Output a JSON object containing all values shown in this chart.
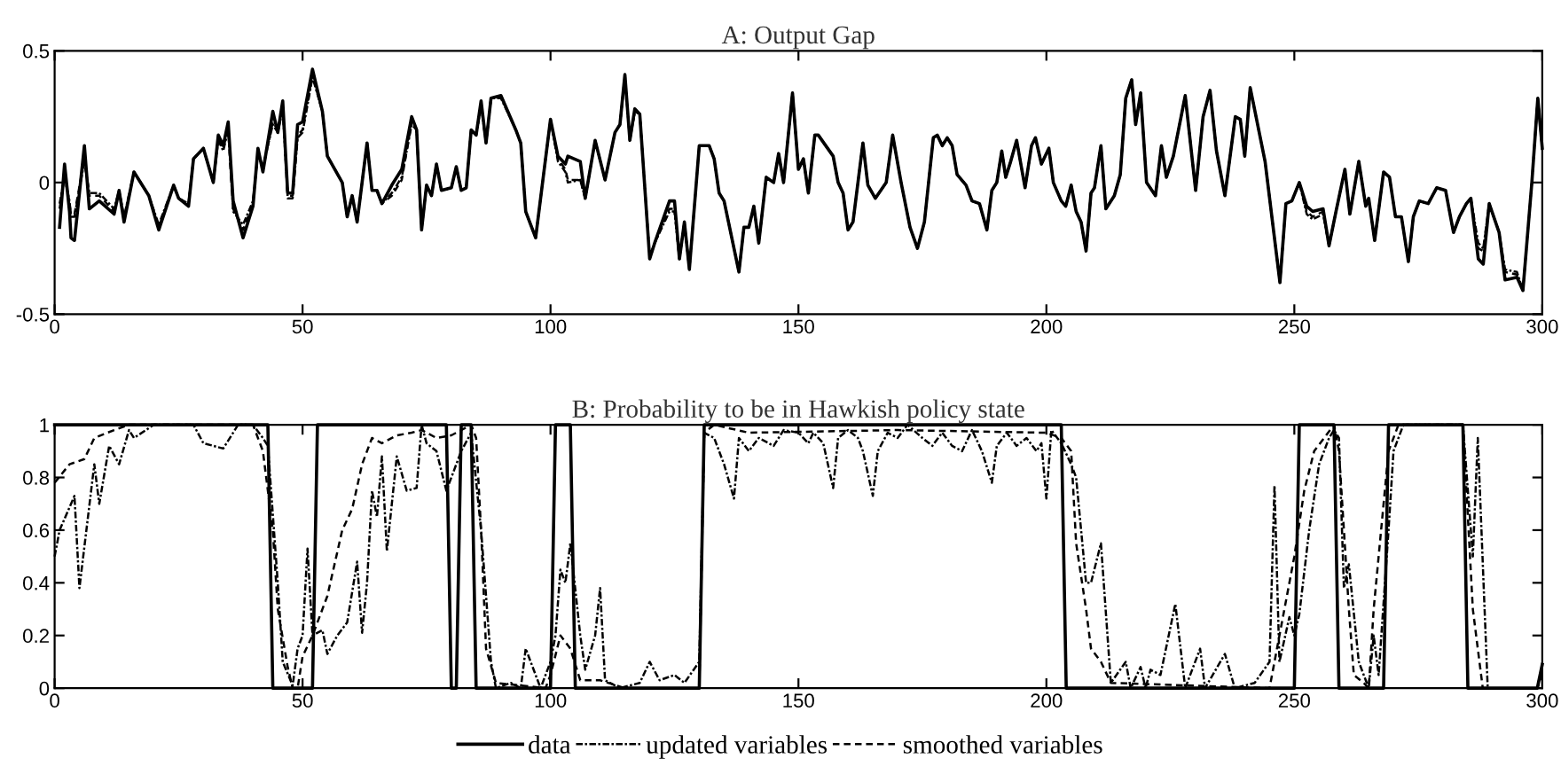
{
  "chart_data": [
    {
      "type": "line",
      "title": "A: Output Gap",
      "xlim": [
        0,
        300
      ],
      "xticks": [
        0,
        50,
        100,
        150,
        200,
        250,
        300
      ],
      "ylim": [
        -0.5,
        0.5
      ],
      "yticks": [
        -0.5,
        0,
        0.5
      ],
      "grid": false,
      "series": [
        {
          "color": "#000000",
          "line_style": "solid",
          "x": [
            1,
            2,
            3,
            3.3,
            4,
            6,
            7,
            9,
            12,
            13,
            14,
            16,
            19,
            21,
            24,
            25,
            27,
            28,
            30,
            32,
            33,
            34,
            35,
            36,
            38,
            40,
            41,
            42,
            44,
            45,
            46,
            47,
            48,
            49,
            50,
            52,
            54,
            55,
            58,
            59,
            60,
            61,
            63,
            64,
            65,
            66,
            68,
            70,
            72,
            73,
            74,
            75,
            76,
            77,
            78,
            80,
            81,
            82,
            83,
            84,
            85,
            86,
            87,
            88,
            90,
            93,
            94,
            95,
            97,
            100,
            101.5,
            103,
            103.5,
            106,
            107,
            109,
            111,
            113,
            114,
            115,
            116,
            117,
            118,
            120,
            121,
            124,
            125,
            126,
            127,
            128,
            130,
            132,
            133,
            134,
            135,
            138,
            139,
            140,
            141,
            142,
            143.5,
            145,
            146,
            147,
            148.8,
            150,
            151,
            152,
            153.3,
            154,
            157,
            158,
            159,
            160,
            161,
            163,
            164,
            165.5,
            167.7,
            169,
            170.7,
            172.5,
            174,
            175.4,
            177.2,
            178,
            179,
            180,
            181,
            182,
            183.8,
            185,
            186.5,
            188,
            189,
            190,
            191,
            191.8,
            192.8,
            194,
            195.7,
            197,
            197.8,
            199,
            200.5,
            201.4,
            203,
            203.9,
            205,
            206,
            207,
            208,
            209,
            209.7,
            211,
            212,
            213.7,
            214.9,
            216,
            217.2,
            218,
            219,
            220.2,
            222,
            223.2,
            224.2,
            225.6,
            228,
            230.1,
            231.6,
            233,
            234.3,
            236,
            238.1,
            239.1,
            240,
            241.1,
            244.1,
            247.1,
            248.3,
            249.5,
            251,
            252.5,
            253.7,
            255.8,
            257,
            258.4,
            260.2,
            261.2,
            263,
            264.4,
            265,
            266.2,
            268,
            269.2,
            270.4,
            271.6,
            273,
            274,
            275.2,
            277,
            278.7,
            280.5,
            282.1,
            283.3,
            284.7,
            285.6,
            287.1,
            288.1,
            289.3,
            291.3,
            292.5,
            294.9,
            296.1,
            297.9,
            299.1,
            300
          ],
          "values": [
            -0.17,
            0.07,
            -0.11,
            -0.21,
            -0.22,
            0.14,
            -0.1,
            -0.07,
            -0.12,
            -0.03,
            -0.15,
            0.04,
            -0.05,
            -0.18,
            -0.01,
            -0.06,
            -0.09,
            0.09,
            0.13,
            0.0,
            0.18,
            0.14,
            0.23,
            -0.07,
            -0.21,
            -0.09,
            0.13,
            0.04,
            0.27,
            0.19,
            0.31,
            -0.04,
            -0.04,
            0.22,
            0.23,
            0.43,
            0.27,
            0.1,
            0.0,
            -0.13,
            -0.05,
            -0.15,
            0.15,
            -0.03,
            -0.03,
            -0.08,
            -0.01,
            0.05,
            0.25,
            0.2,
            -0.18,
            -0.01,
            -0.05,
            0.07,
            -0.03,
            -0.02,
            0.06,
            -0.03,
            -0.02,
            0.2,
            0.18,
            0.31,
            0.15,
            0.32,
            0.33,
            0.2,
            0.15,
            -0.11,
            -0.21,
            0.24,
            0.1,
            0.07,
            0.1,
            0.08,
            -0.06,
            0.16,
            0.01,
            0.19,
            0.22,
            0.41,
            0.16,
            0.28,
            0.26,
            -0.29,
            -0.23,
            -0.07,
            -0.07,
            -0.29,
            -0.15,
            -0.33,
            0.14,
            0.14,
            0.09,
            -0.04,
            -0.07,
            -0.34,
            -0.17,
            -0.17,
            -0.09,
            -0.23,
            0.02,
            0.0,
            0.11,
            0.0,
            0.34,
            0.05,
            0.09,
            -0.04,
            0.18,
            0.18,
            0.1,
            0.0,
            -0.04,
            -0.18,
            -0.15,
            0.15,
            -0.01,
            -0.06,
            0.0,
            0.18,
            0.0,
            -0.17,
            -0.25,
            -0.15,
            0.17,
            0.18,
            0.14,
            0.17,
            0.14,
            0.03,
            -0.01,
            -0.07,
            -0.08,
            -0.18,
            -0.03,
            0.0,
            0.12,
            0.02,
            0.08,
            0.16,
            -0.02,
            0.14,
            0.17,
            0.07,
            0.13,
            0.0,
            -0.07,
            -0.09,
            -0.01,
            -0.11,
            -0.15,
            -0.26,
            -0.04,
            -0.02,
            0.14,
            -0.1,
            -0.05,
            0.03,
            0.32,
            0.39,
            0.22,
            0.34,
            0.0,
            -0.05,
            0.14,
            0.02,
            0.1,
            0.33,
            -0.03,
            0.25,
            0.35,
            0.12,
            -0.05,
            0.25,
            0.24,
            0.1,
            0.36,
            0.08,
            -0.38,
            -0.08,
            -0.07,
            0.0,
            -0.09,
            -0.11,
            -0.1,
            -0.24,
            -0.11,
            0.05,
            -0.12,
            0.08,
            -0.09,
            -0.06,
            -0.22,
            0.04,
            0.02,
            -0.13,
            -0.13,
            -0.3,
            -0.13,
            -0.07,
            -0.08,
            -0.02,
            -0.03,
            -0.19,
            -0.13,
            -0.08,
            -0.06,
            -0.29,
            -0.31,
            -0.08,
            -0.19,
            -0.37,
            -0.36,
            -0.41,
            0.0,
            0.32,
            0.13
          ]
        },
        {
          "color": "#000000",
          "line_style": "dashdot",
          "x": [
            1,
            2,
            3,
            3.3,
            4,
            6,
            7,
            9,
            12,
            13,
            14,
            16,
            19,
            21,
            24,
            25,
            27,
            28,
            30,
            32,
            33,
            34,
            35,
            36,
            38,
            40,
            41,
            42,
            44,
            45,
            46,
            47,
            48,
            49,
            50,
            52,
            54,
            55,
            58,
            59,
            60,
            61,
            63,
            64,
            65,
            66,
            68,
            70,
            72,
            73,
            74,
            75,
            76,
            77,
            78,
            80,
            81,
            82,
            83,
            84,
            85,
            86,
            87,
            88,
            90,
            93,
            94,
            95,
            97,
            100,
            101.5,
            103,
            103.5,
            106,
            107,
            109,
            111,
            113,
            114,
            115,
            116,
            117,
            118,
            120,
            121,
            124,
            125,
            126,
            127,
            128,
            130,
            132,
            133,
            134,
            135,
            138,
            139,
            140,
            141,
            142,
            143.5,
            145,
            146,
            147,
            148.8,
            150,
            151,
            152,
            153.3,
            154,
            157,
            158,
            159,
            160,
            161,
            163,
            164,
            165.5,
            167.7,
            169,
            170.7,
            172.5,
            174,
            175.4,
            177.2,
            178,
            179,
            180,
            181,
            182,
            183.8,
            185,
            186.5,
            188,
            189,
            190,
            191,
            191.8,
            192.8,
            194,
            195.7,
            197,
            197.8,
            199,
            200.5,
            201.4,
            203,
            203.9,
            205,
            206,
            207,
            208,
            209,
            209.7,
            211,
            212,
            213.7,
            214.9,
            216,
            217.2,
            218,
            219,
            220.2,
            222,
            223.2,
            224.2,
            225.6,
            228,
            230.1,
            231.6,
            233,
            234.3,
            236,
            238.1,
            239.1,
            240,
            241.1,
            244.1,
            247.1,
            248.3,
            249.5,
            251,
            252.5,
            253.7,
            255.8,
            257,
            258.4,
            260.2,
            261.2,
            263,
            264.4,
            265,
            266.2,
            268,
            269.2,
            270.4,
            271.6,
            273,
            274,
            275.2,
            277,
            278.7,
            280.5,
            282.1,
            283.3,
            284.7,
            285.6,
            287.1,
            288.1,
            289.3,
            291.3,
            292.5,
            294.9,
            296.1,
            297.9,
            299.1,
            300
          ],
          "values": [
            -0.08,
            0.02,
            -0.07,
            -0.13,
            -0.13,
            0.08,
            -0.04,
            -0.04,
            -0.1,
            -0.03,
            -0.13,
            0.04,
            -0.05,
            -0.16,
            -0.01,
            -0.06,
            -0.08,
            0.09,
            0.13,
            0.0,
            0.16,
            0.12,
            0.2,
            -0.11,
            -0.16,
            -0.07,
            0.11,
            0.06,
            0.22,
            0.19,
            0.28,
            -0.06,
            -0.06,
            0.17,
            0.19,
            0.4,
            0.27,
            0.1,
            0.0,
            -0.13,
            -0.05,
            -0.15,
            0.15,
            -0.03,
            -0.03,
            -0.08,
            -0.04,
            0.02,
            0.22,
            0.2,
            -0.18,
            -0.01,
            -0.05,
            0.07,
            -0.03,
            -0.02,
            0.06,
            -0.03,
            -0.02,
            0.2,
            0.18,
            0.29,
            0.15,
            0.32,
            0.32,
            0.2,
            0.15,
            -0.11,
            -0.21,
            0.24,
            0.08,
            0.04,
            0.0,
            0.01,
            -0.06,
            0.16,
            0.01,
            0.19,
            0.22,
            0.4,
            0.16,
            0.27,
            0.26,
            -0.28,
            -0.23,
            -0.11,
            -0.11,
            -0.29,
            -0.15,
            -0.33,
            0.14,
            0.14,
            0.09,
            -0.04,
            -0.07,
            -0.34,
            -0.17,
            -0.17,
            -0.09,
            -0.23,
            0.02,
            0.0,
            0.11,
            0.0,
            0.34,
            0.05,
            0.09,
            -0.04,
            0.18,
            0.18,
            0.1,
            0.0,
            -0.04,
            -0.18,
            -0.15,
            0.15,
            -0.01,
            -0.06,
            0.0,
            0.18,
            0.0,
            -0.17,
            -0.25,
            -0.15,
            0.17,
            0.18,
            0.14,
            0.17,
            0.14,
            0.03,
            -0.01,
            -0.07,
            -0.08,
            -0.18,
            -0.03,
            0.0,
            0.12,
            0.02,
            0.08,
            0.16,
            -0.02,
            0.14,
            0.17,
            0.07,
            0.13,
            0.0,
            -0.07,
            -0.09,
            -0.01,
            -0.11,
            -0.15,
            -0.26,
            -0.04,
            -0.02,
            0.14,
            -0.1,
            -0.05,
            0.03,
            0.32,
            0.39,
            0.22,
            0.34,
            0.0,
            -0.05,
            0.14,
            0.02,
            0.1,
            0.33,
            -0.03,
            0.25,
            0.35,
            0.12,
            -0.05,
            0.25,
            0.24,
            0.1,
            0.36,
            0.08,
            -0.38,
            -0.08,
            -0.07,
            0.0,
            -0.12,
            -0.14,
            -0.12,
            -0.24,
            -0.11,
            0.05,
            -0.12,
            0.08,
            -0.09,
            -0.06,
            -0.22,
            0.04,
            0.02,
            -0.13,
            -0.13,
            -0.3,
            -0.13,
            -0.07,
            -0.08,
            -0.02,
            -0.03,
            -0.19,
            -0.13,
            -0.08,
            -0.06,
            -0.23,
            -0.25,
            -0.08,
            -0.19,
            -0.33,
            -0.34,
            -0.41,
            0.0,
            0.32,
            0.13
          ]
        },
        {
          "color": "#000000",
          "line_style": "dashed",
          "x": [
            1,
            2,
            3,
            3.3,
            4,
            6,
            7,
            9,
            12,
            13,
            14,
            16,
            19,
            21,
            24,
            25,
            27,
            28,
            30,
            32,
            33,
            34,
            35,
            36,
            38,
            40,
            41,
            42,
            44,
            45,
            46,
            47,
            48,
            49,
            50,
            52,
            54,
            55,
            58,
            59,
            60,
            61,
            63,
            64,
            65,
            66,
            68,
            70,
            72,
            73,
            74,
            75,
            76,
            77,
            78,
            80,
            81,
            82,
            83,
            84,
            85,
            86,
            87,
            88,
            90,
            93,
            94,
            95,
            97,
            100,
            101.5,
            103,
            103.5,
            106,
            107,
            109,
            111,
            113,
            114,
            115,
            116,
            117,
            118,
            120,
            121,
            124,
            125,
            126,
            127,
            128,
            130,
            132,
            133,
            134,
            135,
            138,
            139,
            140,
            141,
            142,
            143.5,
            145,
            146,
            147,
            148.8,
            150,
            151,
            152,
            153.3,
            154,
            157,
            158,
            159,
            160,
            161,
            163,
            164,
            165.5,
            167.7,
            169,
            170.7,
            172.5,
            174,
            175.4,
            177.2,
            178,
            179,
            180,
            181,
            182,
            183.8,
            185,
            186.5,
            188,
            189,
            190,
            191,
            191.8,
            192.8,
            194,
            195.7,
            197,
            197.8,
            199,
            200.5,
            201.4,
            203,
            203.9,
            205,
            206,
            207,
            208,
            209,
            209.7,
            211,
            212,
            213.7,
            214.9,
            216,
            217.2,
            218,
            219,
            220.2,
            222,
            223.2,
            224.2,
            225.6,
            228,
            230.1,
            231.6,
            233,
            234.3,
            236,
            238.1,
            239.1,
            240,
            241.1,
            244.1,
            247.1,
            248.3,
            249.5,
            251,
            252.5,
            253.7,
            255.8,
            257,
            258.4,
            260.2,
            261.2,
            263,
            264.4,
            265,
            266.2,
            268,
            269.2,
            270.4,
            271.6,
            273,
            274,
            275.2,
            277,
            278.7,
            280.5,
            282.1,
            283.3,
            284.7,
            285.6,
            287.1,
            288.1,
            289.3,
            291.3,
            292.5,
            294.9,
            296.1,
            297.9,
            299.1,
            300
          ],
          "values": [
            -0.1,
            0.03,
            -0.08,
            -0.12,
            -0.12,
            0.09,
            -0.05,
            -0.05,
            -0.11,
            -0.03,
            -0.14,
            0.04,
            -0.05,
            -0.17,
            -0.01,
            -0.06,
            -0.08,
            0.09,
            0.13,
            0.0,
            0.17,
            0.13,
            0.21,
            -0.1,
            -0.18,
            -0.08,
            0.12,
            0.05,
            0.23,
            0.2,
            0.29,
            -0.05,
            -0.05,
            0.18,
            0.2,
            0.41,
            0.27,
            0.1,
            0.0,
            -0.13,
            -0.05,
            -0.15,
            0.15,
            -0.03,
            -0.03,
            -0.08,
            -0.05,
            0.01,
            0.23,
            0.2,
            -0.18,
            -0.01,
            -0.05,
            0.07,
            -0.03,
            -0.02,
            0.06,
            -0.03,
            -0.02,
            0.2,
            0.18,
            0.3,
            0.15,
            0.32,
            0.33,
            0.2,
            0.15,
            -0.11,
            -0.21,
            0.24,
            0.09,
            0.05,
            0.01,
            0.01,
            -0.06,
            0.16,
            0.01,
            0.19,
            0.22,
            0.41,
            0.16,
            0.27,
            0.26,
            -0.29,
            -0.23,
            -0.1,
            -0.1,
            -0.29,
            -0.15,
            -0.33,
            0.14,
            0.14,
            0.09,
            -0.04,
            -0.07,
            -0.34,
            -0.17,
            -0.17,
            -0.09,
            -0.23,
            0.02,
            0.0,
            0.11,
            0.0,
            0.34,
            0.05,
            0.09,
            -0.04,
            0.18,
            0.18,
            0.1,
            0.0,
            -0.04,
            -0.18,
            -0.15,
            0.15,
            -0.01,
            -0.06,
            0.0,
            0.18,
            0.0,
            -0.17,
            -0.25,
            -0.15,
            0.17,
            0.18,
            0.14,
            0.17,
            0.14,
            0.03,
            -0.01,
            -0.07,
            -0.08,
            -0.18,
            -0.03,
            0.0,
            0.12,
            0.02,
            0.08,
            0.16,
            -0.02,
            0.14,
            0.17,
            0.07,
            0.13,
            0.0,
            -0.07,
            -0.09,
            -0.01,
            -0.11,
            -0.15,
            -0.26,
            -0.04,
            -0.02,
            0.14,
            -0.1,
            -0.05,
            0.03,
            0.32,
            0.39,
            0.22,
            0.34,
            0.0,
            -0.05,
            0.14,
            0.02,
            0.1,
            0.33,
            -0.03,
            0.25,
            0.35,
            0.12,
            -0.05,
            0.25,
            0.24,
            0.1,
            0.36,
            0.08,
            -0.38,
            -0.08,
            -0.07,
            0.0,
            -0.11,
            -0.13,
            -0.11,
            -0.24,
            -0.11,
            0.05,
            -0.12,
            0.08,
            -0.09,
            -0.06,
            -0.22,
            0.04,
            0.02,
            -0.13,
            -0.13,
            -0.3,
            -0.13,
            -0.07,
            -0.08,
            -0.02,
            -0.03,
            -0.19,
            -0.13,
            -0.08,
            -0.06,
            -0.25,
            -0.26,
            -0.08,
            -0.19,
            -0.34,
            -0.35,
            -0.41,
            0.0,
            0.32,
            0.13
          ]
        }
      ]
    },
    {
      "type": "line",
      "title": "B: Probability to be in Hawkish policy state",
      "xlim": [
        0,
        300
      ],
      "xticks": [
        0,
        50,
        100,
        150,
        200,
        250,
        300
      ],
      "ylim": [
        0,
        1
      ],
      "yticks": [
        0,
        0.2,
        0.4,
        0.6,
        0.8,
        1
      ],
      "grid": false,
      "legend": "bottom",
      "series": [
        {
          "name": "data",
          "color": "#000000",
          "line_style": "solid",
          "x": [
            0,
            43,
            44,
            52,
            53,
            79,
            80,
            81,
            82,
            84,
            85,
            100,
            101,
            104,
            105,
            130,
            131,
            203,
            204,
            250,
            251,
            258,
            259,
            268,
            269,
            284,
            285,
            299,
            300
          ],
          "values": [
            1,
            1,
            0,
            0,
            1,
            1,
            0,
            0,
            1,
            1,
            0,
            0,
            1,
            1,
            0,
            0,
            1,
            1,
            0,
            0,
            1,
            1,
            0,
            0,
            1,
            1,
            0,
            0,
            0.09
          ]
        },
        {
          "name": "updated variables",
          "color": "#000000",
          "line_style": "dashdot",
          "x": [
            0,
            1,
            4,
            5,
            8,
            9,
            11,
            13,
            15,
            16,
            20,
            28,
            30,
            34,
            37,
            40,
            42,
            43,
            45,
            46,
            48,
            49,
            50,
            51,
            52,
            54,
            55,
            57,
            59,
            61,
            62,
            63,
            64,
            65,
            66,
            67,
            69,
            71,
            73,
            74,
            75,
            77,
            79,
            82,
            84,
            86,
            88,
            89,
            92,
            94,
            95,
            98,
            100,
            101,
            102,
            103,
            104,
            106,
            107,
            109,
            110,
            111,
            114,
            118,
            120,
            122,
            125,
            127,
            130,
            131,
            133,
            135,
            137,
            138,
            140,
            142,
            145,
            147,
            150,
            152,
            153,
            155,
            157,
            158,
            160,
            162,
            163,
            165,
            166,
            168,
            170,
            172,
            175,
            177,
            179,
            181,
            183,
            185,
            187,
            189,
            190,
            192,
            194,
            196,
            198,
            199,
            200,
            201,
            203,
            205,
            206,
            208,
            209,
            211,
            213,
            216,
            217,
            219,
            220,
            221,
            223,
            226,
            228,
            231,
            232,
            236,
            238,
            242,
            245,
            246,
            247,
            249,
            250,
            251,
            253,
            255,
            257,
            258,
            259,
            260,
            261,
            263,
            265,
            266,
            267,
            269,
            270,
            272,
            284,
            286,
            287,
            289,
            299,
            300
          ],
          "values": [
            0.5,
            0.6,
            0.73,
            0.38,
            0.85,
            0.7,
            0.92,
            0.85,
            0.98,
            0.95,
            1,
            1,
            0.93,
            0.91,
            1,
            1,
            0.95,
            0.92,
            0.4,
            0.1,
            0.01,
            0.15,
            0.2,
            0.53,
            0.2,
            0.22,
            0.13,
            0.2,
            0.25,
            0.48,
            0.21,
            0.4,
            0.75,
            0.65,
            0.88,
            0.52,
            0.88,
            0.75,
            0.76,
            1,
            0.93,
            0.9,
            0.75,
            0.9,
            0.97,
            0.6,
            0.1,
            0,
            0.02,
            0,
            0.15,
            0,
            0.1,
            0.2,
            0.45,
            0.4,
            0.55,
            0.2,
            0.07,
            0.2,
            0.38,
            0.03,
            0,
            0.02,
            0.1,
            0.03,
            0.05,
            0.02,
            0.1,
            0.97,
            0.95,
            0.85,
            0.72,
            0.95,
            0.9,
            0.95,
            0.92,
            0.98,
            0.97,
            0.93,
            0.97,
            0.93,
            0.76,
            0.95,
            0.98,
            0.95,
            0.9,
            0.73,
            0.9,
            0.97,
            0.95,
            1,
            0.95,
            0.92,
            0.97,
            0.92,
            0.9,
            0.98,
            0.9,
            0.78,
            0.92,
            0.97,
            0.92,
            0.95,
            0.9,
            0.93,
            0.72,
            0.98,
            0.93,
            0.85,
            0.8,
            0.4,
            0.4,
            0.55,
            0.02,
            0.1,
            0,
            0.08,
            0,
            0.07,
            0.05,
            0.32,
            0,
            0.15,
            0,
            0.13,
            0,
            0.02,
            0.1,
            0.77,
            0.1,
            0.27,
            0.2,
            0.28,
            0.6,
            0.85,
            0.95,
            0.98,
            0.95,
            0.38,
            0.47,
            0.1,
            0,
            0.2,
            0.05,
            0.6,
            0.9,
            1,
            1,
            0.5,
            0.95,
            0,
            0,
            0.09
          ]
        },
        {
          "name": "smoothed variables",
          "color": "#000000",
          "line_style": "dashed",
          "x": [
            0,
            3,
            6,
            8,
            12,
            15,
            40,
            41,
            42,
            44,
            45,
            47,
            48,
            49,
            50,
            52,
            55,
            58,
            60,
            62,
            64,
            66,
            69,
            72,
            74,
            77,
            80,
            84,
            85,
            86,
            87,
            89,
            99,
            100,
            102,
            104,
            106,
            110,
            115,
            130,
            131,
            133,
            140,
            170,
            200,
            203,
            205,
            206,
            208,
            209,
            211,
            213,
            245,
            246,
            248,
            250,
            252,
            254,
            256,
            258,
            259,
            261,
            262,
            264,
            265,
            266,
            267,
            269,
            271,
            284,
            286,
            288,
            299,
            300
          ],
          "values": [
            0.78,
            0.85,
            0.87,
            0.95,
            0.98,
            1,
            1,
            0.95,
            0.9,
            0.6,
            0.3,
            0.08,
            0,
            0,
            0.12,
            0.2,
            0.35,
            0.6,
            0.68,
            0.85,
            0.95,
            0.93,
            0.96,
            0.97,
            0.98,
            0.95,
            0.96,
            1,
            0.95,
            0.6,
            0.15,
            0.02,
            0,
            0.05,
            0.2,
            0.15,
            0.03,
            0.03,
            0,
            0,
            0.97,
            1,
            0.97,
            0.98,
            0.97,
            0.95,
            0.9,
            0.55,
            0.3,
            0.15,
            0.1,
            0.02,
            0,
            0.1,
            0.3,
            0.5,
            0.75,
            0.9,
            0.95,
            1,
            0.9,
            0.3,
            0.05,
            0.02,
            0,
            0.3,
            0.5,
            0.9,
            1,
            1,
            0.3,
            0,
            0,
            0.05
          ]
        }
      ]
    }
  ]
}
